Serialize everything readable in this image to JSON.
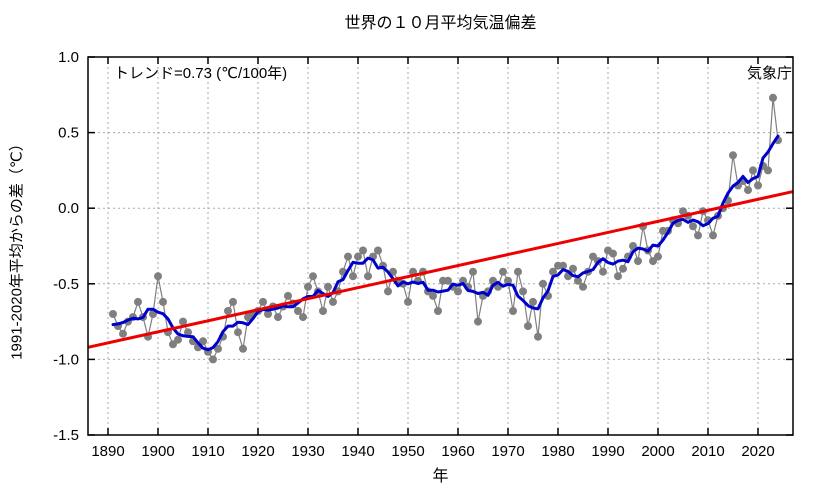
{
  "chart": {
    "title": "世界の１０月平均気温偏差",
    "trend_label": "トレンド=0.73 (℃/100年)",
    "agency": "気象庁",
    "ylabel": "1991-2020年平均からの差（℃）",
    "xlabel": "年"
  },
  "chart_data": {
    "type": "line",
    "title": "世界の１０月平均気温偏差",
    "xlabel": "年",
    "ylabel": "1991-2020年平均からの差（℃）",
    "xlim": [
      1886,
      2027
    ],
    "ylim": [
      -1.5,
      1.0
    ],
    "x_ticks": [
      1890,
      1900,
      1910,
      1920,
      1930,
      1940,
      1950,
      1960,
      1970,
      1980,
      1990,
      2000,
      2010,
      2020
    ],
    "y_ticks": [
      1.0,
      0.5,
      0.0,
      -0.5,
      -1.0,
      -1.5
    ],
    "y_tick_labels": [
      "1.0",
      "0.5",
      "0.0",
      "-0.5",
      "-1.0",
      "-1.5"
    ],
    "grid": true,
    "grid_color": "#aaaaaa",
    "legend": "none",
    "annotations": {
      "trend_label": "トレンド=0.73 (℃/100年)",
      "agency": "気象庁"
    },
    "series": [
      {
        "name": "annual",
        "style": "points-with-line",
        "color": "#7f7f7f",
        "start_year": 1891,
        "values": [
          -0.7,
          -0.78,
          -0.83,
          -0.75,
          -0.72,
          -0.62,
          -0.72,
          -0.85,
          -0.7,
          -0.45,
          -0.62,
          -0.82,
          -0.9,
          -0.87,
          -0.75,
          -0.82,
          -0.88,
          -0.92,
          -0.88,
          -0.95,
          -1.0,
          -0.93,
          -0.85,
          -0.68,
          -0.62,
          -0.82,
          -0.93,
          -0.72,
          -0.7,
          -0.68,
          -0.62,
          -0.7,
          -0.65,
          -0.72,
          -0.65,
          -0.58,
          -0.63,
          -0.68,
          -0.72,
          -0.52,
          -0.45,
          -0.55,
          -0.68,
          -0.52,
          -0.62,
          -0.55,
          -0.42,
          -0.32,
          -0.45,
          -0.32,
          -0.28,
          -0.45,
          -0.32,
          -0.28,
          -0.38,
          -0.55,
          -0.42,
          -0.48,
          -0.5,
          -0.62,
          -0.42,
          -0.48,
          -0.42,
          -0.55,
          -0.58,
          -0.68,
          -0.48,
          -0.48,
          -0.52,
          -0.55,
          -0.48,
          -0.52,
          -0.42,
          -0.75,
          -0.58,
          -0.55,
          -0.48,
          -0.52,
          -0.42,
          -0.48,
          -0.68,
          -0.42,
          -0.55,
          -0.78,
          -0.62,
          -0.85,
          -0.5,
          -0.58,
          -0.42,
          -0.38,
          -0.38,
          -0.45,
          -0.4,
          -0.48,
          -0.52,
          -0.42,
          -0.32,
          -0.35,
          -0.42,
          -0.28,
          -0.3,
          -0.45,
          -0.4,
          -0.32,
          -0.25,
          -0.35,
          -0.12,
          -0.28,
          -0.35,
          -0.32,
          -0.15,
          -0.15,
          -0.08,
          -0.1,
          -0.02,
          -0.05,
          -0.12,
          -0.18,
          -0.02,
          -0.08,
          -0.18,
          -0.05,
          0.0,
          0.05,
          0.35,
          0.15,
          0.18,
          0.12,
          0.25,
          0.15,
          0.28,
          0.25,
          0.73,
          0.45
        ]
      },
      {
        "name": "5yr_moving_average",
        "style": "line",
        "color": "#0000cc",
        "window": 5,
        "derived_from": "annual"
      },
      {
        "name": "trend",
        "style": "line",
        "color": "#ee0000",
        "trend_per_100yr": 0.73,
        "x": [
          1886,
          2027
        ],
        "values": [
          -0.92,
          0.11
        ]
      }
    ]
  }
}
